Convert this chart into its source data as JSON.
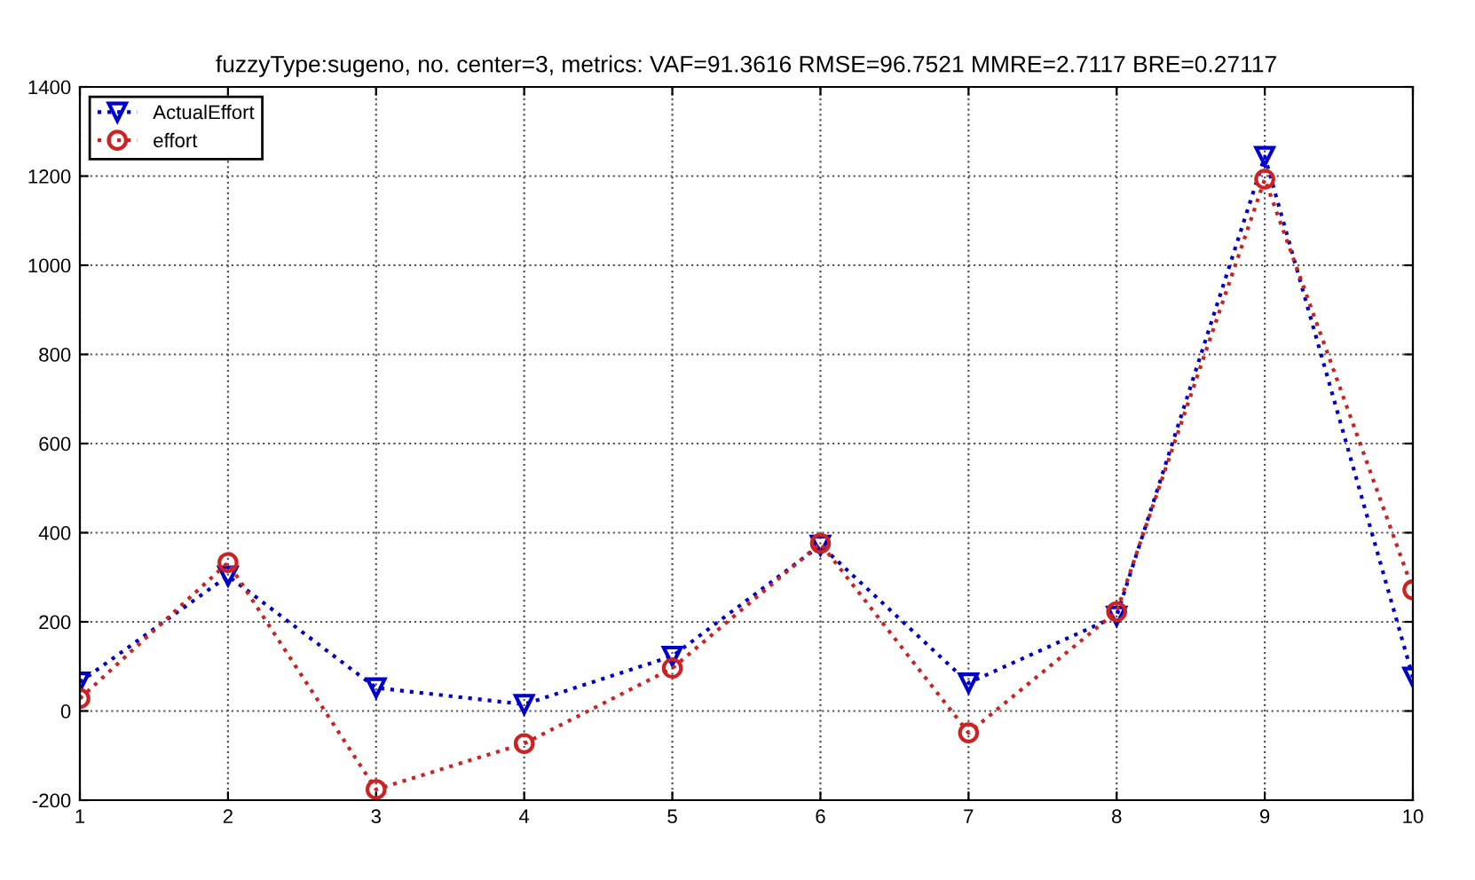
{
  "chart_data": {
    "type": "line",
    "title": "fuzzyType:sugeno, no. center=3, metrics: VAF=91.3616 RMSE=96.7521 MMRE=2.7117 BRE=0.27117",
    "x": [
      1,
      2,
      3,
      4,
      5,
      6,
      7,
      8,
      9,
      10
    ],
    "series": [
      {
        "name": "ActualEffort",
        "color": "#0000cc",
        "marker": "triangle",
        "values": [
          65,
          303,
          52,
          15,
          123,
          372,
          63,
          213,
          1244,
          76
        ]
      },
      {
        "name": "effort",
        "color": "#cc2222",
        "marker": "circle",
        "values": [
          28,
          333,
          -176,
          -73,
          96,
          376,
          -49,
          223,
          1193,
          272
        ]
      }
    ],
    "xlim": [
      1,
      10
    ],
    "xticks": [
      1,
      2,
      3,
      4,
      5,
      6,
      7,
      8,
      9,
      10
    ],
    "ylim": [
      -200,
      1400
    ],
    "yticks": [
      -200,
      0,
      200,
      400,
      600,
      800,
      1000,
      1200,
      1400
    ],
    "grid": true,
    "legend": "top left",
    "line_style": "dotted"
  }
}
